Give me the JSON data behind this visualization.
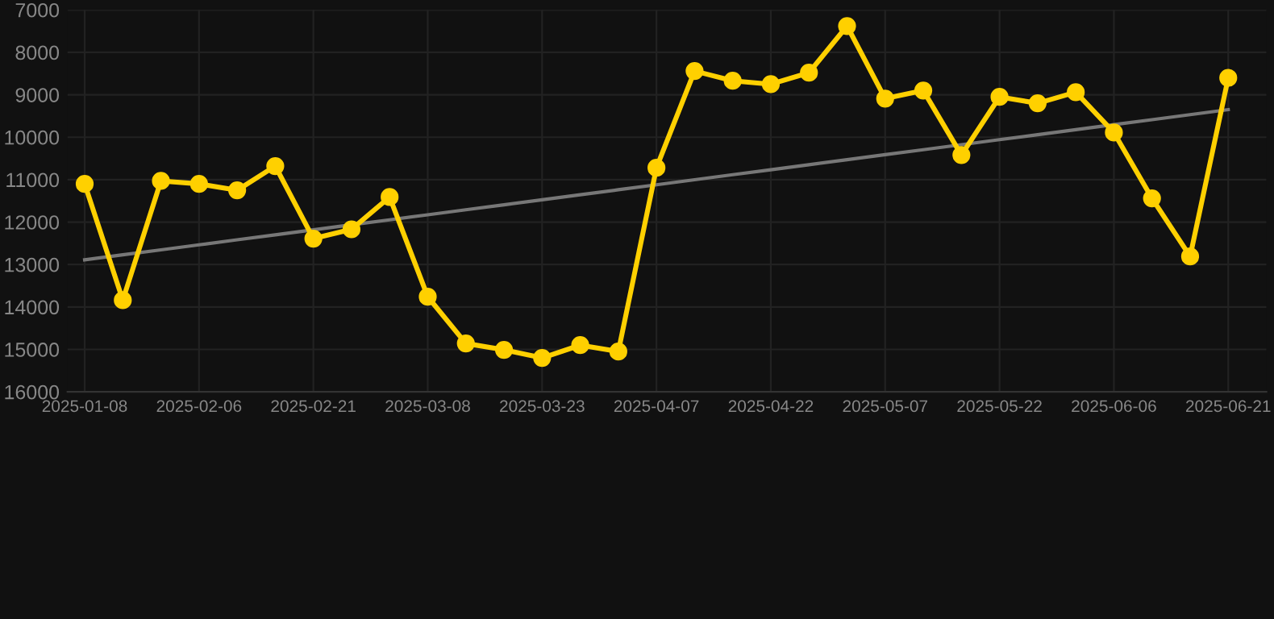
{
  "chart_data": {
    "type": "line",
    "categories": [
      "2025-01-08",
      null,
      null,
      "2025-02-06",
      null,
      null,
      "2025-02-21",
      null,
      null,
      "2025-03-08",
      null,
      null,
      "2025-03-23",
      null,
      null,
      "2025-04-07",
      null,
      null,
      "2025-04-22",
      null,
      null,
      "2025-05-07",
      null,
      null,
      "2025-05-22",
      null,
      null,
      "2025-06-06",
      null,
      null,
      "2025-06-21"
    ],
    "series": [
      {
        "color": "#ffd000",
        "marker": "circle",
        "values": [
          11100,
          13840,
          11030,
          11100,
          11250,
          10680,
          12390,
          12170,
          11410,
          13760,
          14860,
          15010,
          15200,
          14900,
          15050,
          10720,
          8440,
          8670,
          8750,
          8480,
          7380,
          9090,
          8900,
          10420,
          9050,
          9200,
          8940,
          9890,
          11440,
          12810,
          8600
        ]
      },
      {
        "type": "line",
        "color": "#777777",
        "marker": "none",
        "values": [
          12890,
          12772,
          12654,
          12536,
          12418,
          12300,
          12182,
          12064,
          11946,
          11828,
          11710,
          11592,
          11474,
          11356,
          11238,
          11120,
          11002,
          10884,
          10766,
          10648,
          10530,
          10412,
          10294,
          10176,
          10058,
          9940,
          9822,
          9704,
          9586,
          9468,
          9350
        ]
      }
    ],
    "ylim": [
      16000,
      7000
    ],
    "yticks": [
      7000,
      8000,
      9000,
      10000,
      11000,
      12000,
      13000,
      14000,
      15000,
      16000
    ],
    "grid": true
  }
}
